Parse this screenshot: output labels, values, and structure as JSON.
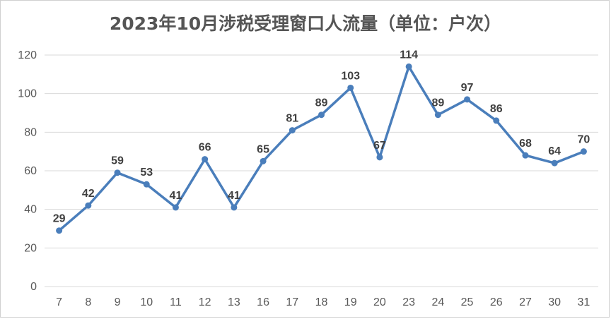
{
  "chart_data": {
    "type": "line",
    "title": "2023年10月涉税受理窗口人流量（单位：户次）",
    "xlabel": "",
    "ylabel": "",
    "categories": [
      "7",
      "8",
      "9",
      "10",
      "11",
      "12",
      "13",
      "16",
      "17",
      "18",
      "19",
      "20",
      "23",
      "24",
      "25",
      "26",
      "27",
      "30",
      "31"
    ],
    "series": [
      {
        "values": [
          29,
          42,
          59,
          53,
          41,
          66,
          41,
          65,
          81,
          89,
          103,
          67,
          114,
          89,
          97,
          86,
          68,
          64,
          70
        ]
      }
    ],
    "ylim": [
      0,
      120
    ],
    "yticks": [
      0,
      20,
      40,
      60,
      80,
      100,
      120
    ],
    "grid": true,
    "legend": "none",
    "data_labels": true,
    "colors": {
      "line": "#4A7EBB",
      "marker": "#4A7EBB",
      "grid": "#D9D9D9",
      "title": "#555555",
      "tick_text": "#595959",
      "label_text": "#404040"
    }
  }
}
